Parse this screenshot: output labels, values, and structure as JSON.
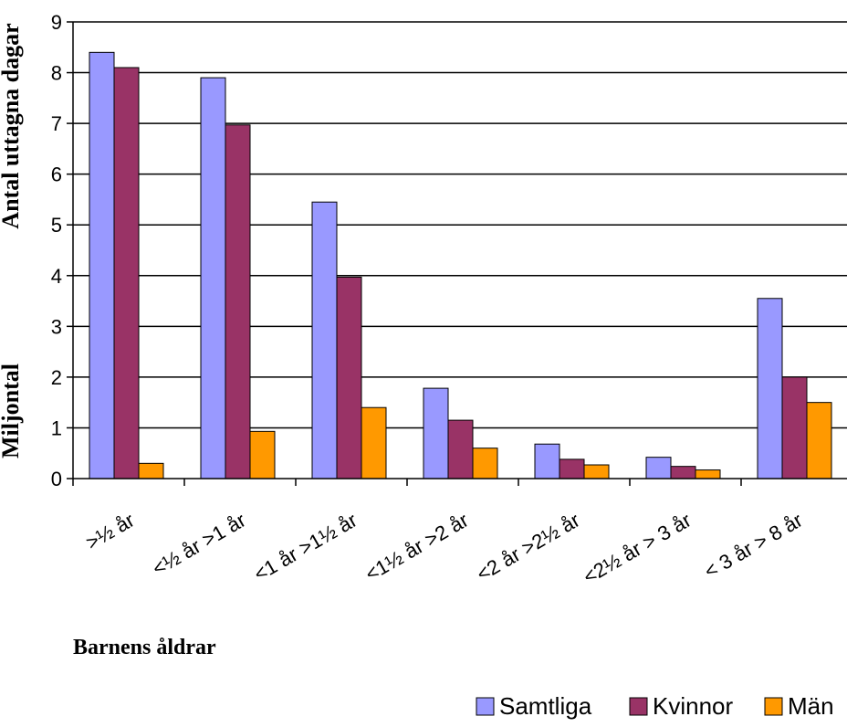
{
  "chart_data": {
    "type": "bar",
    "categories": [
      ">½ år",
      "<½ år >1 år",
      "<1 år >1½ år",
      "<1½ år >2 år",
      "<2 år >2½ år",
      "<2½ år > 3 år",
      "< 3 år > 8 år"
    ],
    "series": [
      {
        "name": "Samtliga",
        "color": "#9999ff",
        "values": [
          8.4,
          7.9,
          5.45,
          1.78,
          0.68,
          0.42,
          3.55
        ]
      },
      {
        "name": "Kvinnor",
        "color": "#993366",
        "values": [
          8.1,
          6.97,
          3.97,
          1.15,
          0.38,
          0.24,
          2.0
        ]
      },
      {
        "name": "Män",
        "color": "#ff9900",
        "values": [
          0.3,
          0.93,
          1.4,
          0.6,
          0.27,
          0.17,
          1.5
        ]
      }
    ],
    "ylabel_line1": "Antal uttagna dagar",
    "ylabel_line2": "Miljontal",
    "xlabel": "Barnens åldrar",
    "ylim": [
      0,
      9
    ],
    "yticks": [
      "0",
      "1",
      "2",
      "3",
      "4",
      "5",
      "6",
      "7",
      "8",
      "9"
    ],
    "grid": true,
    "legend_position": "bottom-right"
  }
}
